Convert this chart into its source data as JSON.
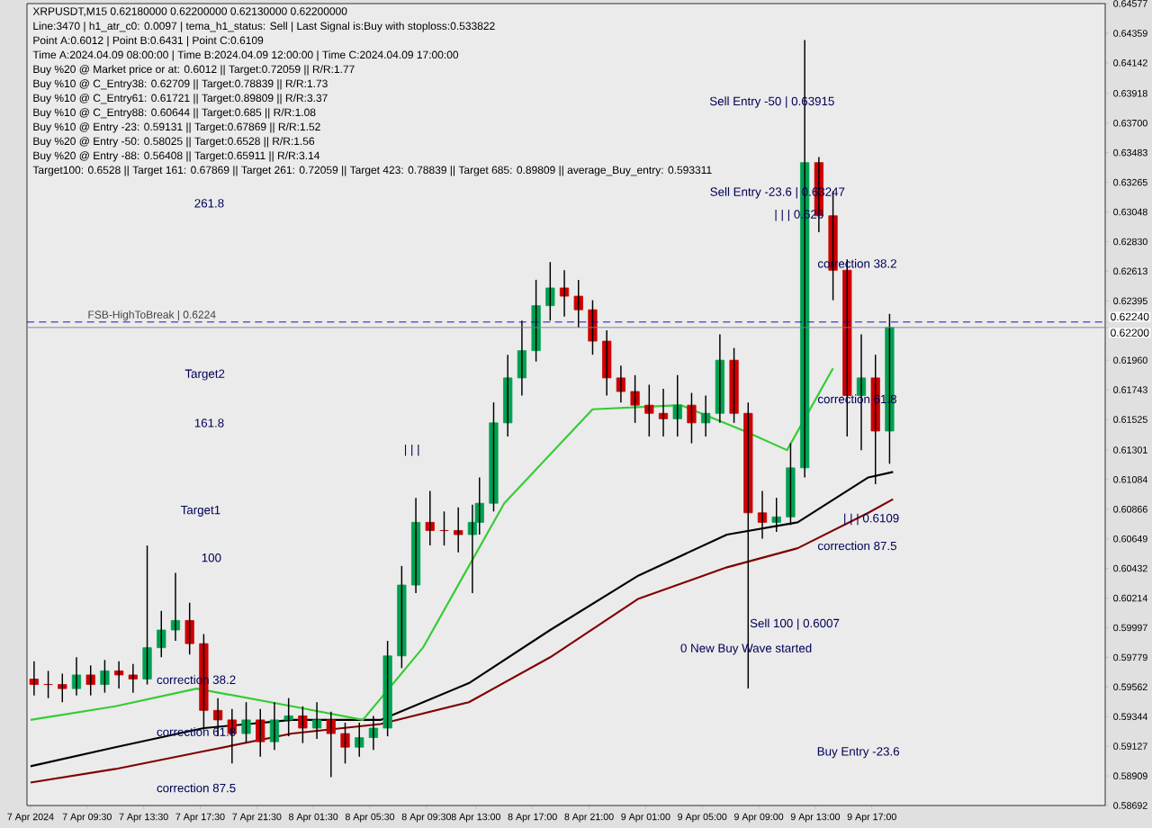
{
  "chart_data": {
    "type": "candlestick",
    "title": "XRPUSDT,M15  0.62180000 0.62200000 0.62130000 0.62200000",
    "x": [
      "2024-04-07T05:45",
      "2024-04-07T06:45",
      "2024-04-07T07:45",
      "2024-04-07T08:45",
      "2024-04-07T09:45",
      "2024-04-07T10:45",
      "2024-04-07T11:45",
      "2024-04-07T12:45",
      "2024-04-07T13:45",
      "2024-04-07T14:45",
      "2024-04-07T15:45",
      "2024-04-07T16:45",
      "2024-04-07T17:45",
      "2024-04-07T18:45",
      "2024-04-07T19:45",
      "2024-04-07T20:45",
      "2024-04-07T21:45",
      "2024-04-07T22:45",
      "2024-04-07T23:45",
      "2024-04-08T00:45",
      "2024-04-08T01:45",
      "2024-04-08T02:45",
      "2024-04-08T03:45",
      "2024-04-08T04:45",
      "2024-04-08T05:45",
      "2024-04-08T06:45",
      "2024-04-08T07:45",
      "2024-04-08T08:45",
      "2024-04-08T09:45",
      "2024-04-08T10:45",
      "2024-04-08T11:45",
      "2024-04-08T12:45",
      "2024-04-08T13:15",
      "2024-04-08T14:15",
      "2024-04-08T15:15",
      "2024-04-08T16:15",
      "2024-04-08T17:15",
      "2024-04-08T18:15",
      "2024-04-08T19:15",
      "2024-04-08T20:15",
      "2024-04-08T21:15",
      "2024-04-08T22:15",
      "2024-04-08T23:15",
      "2024-04-09T00:15",
      "2024-04-09T01:15",
      "2024-04-09T02:15",
      "2024-04-09T03:15",
      "2024-04-09T04:15",
      "2024-04-09T05:15",
      "2024-04-09T06:15",
      "2024-04-09T07:15",
      "2024-04-09T08:15",
      "2024-04-09T09:15",
      "2024-04-09T10:15",
      "2024-04-09T11:15",
      "2024-04-09T12:15",
      "2024-04-09T13:15",
      "2024-04-09T14:15",
      "2024-04-09T15:15",
      "2024-04-09T16:15",
      "2024-04-09T17:15",
      "2024-04-09T18:15"
    ],
    "ohlc": [
      [
        0.5962,
        0.5975,
        0.595,
        0.5958
      ],
      [
        0.5958,
        0.5968,
        0.5948,
        0.5958
      ],
      [
        0.5958,
        0.5966,
        0.5945,
        0.5955
      ],
      [
        0.5955,
        0.5978,
        0.595,
        0.5965
      ],
      [
        0.5965,
        0.5972,
        0.595,
        0.5958
      ],
      [
        0.5958,
        0.5976,
        0.5952,
        0.5968
      ],
      [
        0.5968,
        0.5975,
        0.5955,
        0.5965
      ],
      [
        0.5965,
        0.5973,
        0.5952,
        0.5962
      ],
      [
        0.5962,
        0.606,
        0.5958,
        0.5985
      ],
      [
        0.5985,
        0.6012,
        0.5978,
        0.5998
      ],
      [
        0.5998,
        0.604,
        0.599,
        0.6005
      ],
      [
        0.6005,
        0.6018,
        0.598,
        0.5988
      ],
      [
        0.5988,
        0.5995,
        0.5925,
        0.5939
      ],
      [
        0.5939,
        0.5948,
        0.592,
        0.5932
      ],
      [
        0.5932,
        0.594,
        0.59,
        0.5922
      ],
      [
        0.5922,
        0.5945,
        0.5915,
        0.5932
      ],
      [
        0.5932,
        0.594,
        0.5905,
        0.5916
      ],
      [
        0.5916,
        0.5945,
        0.591,
        0.5932
      ],
      [
        0.5932,
        0.5948,
        0.592,
        0.5935
      ],
      [
        0.5935,
        0.5942,
        0.5915,
        0.5926
      ],
      [
        0.5926,
        0.5945,
        0.5918,
        0.5932
      ],
      [
        0.5932,
        0.5938,
        0.589,
        0.5922
      ],
      [
        0.5922,
        0.593,
        0.59,
        0.5912
      ],
      [
        0.5912,
        0.593,
        0.5905,
        0.5919
      ],
      [
        0.5919,
        0.5935,
        0.591,
        0.5926
      ],
      [
        0.5926,
        0.599,
        0.592,
        0.5979
      ],
      [
        0.5979,
        0.6045,
        0.597,
        0.6031
      ],
      [
        0.6031,
        0.6095,
        0.6025,
        0.6077
      ],
      [
        0.6077,
        0.61,
        0.606,
        0.6071
      ],
      [
        0.6071,
        0.6085,
        0.606,
        0.6071
      ],
      [
        0.6071,
        0.6088,
        0.6055,
        0.6068
      ],
      [
        0.6068,
        0.609,
        0.6025,
        0.6077
      ],
      [
        0.6077,
        0.611,
        0.6068,
        0.6091
      ],
      [
        0.6091,
        0.6165,
        0.6085,
        0.615
      ],
      [
        0.615,
        0.62,
        0.614,
        0.6183
      ],
      [
        0.6183,
        0.6225,
        0.617,
        0.6203
      ],
      [
        0.6203,
        0.6255,
        0.6195,
        0.6236
      ],
      [
        0.6236,
        0.6268,
        0.6225,
        0.6249
      ],
      [
        0.6249,
        0.6262,
        0.6228,
        0.6243
      ],
      [
        0.6243,
        0.6255,
        0.622,
        0.6233
      ],
      [
        0.6233,
        0.624,
        0.62,
        0.621
      ],
      [
        0.621,
        0.6218,
        0.617,
        0.6183
      ],
      [
        0.6183,
        0.6192,
        0.6165,
        0.6173
      ],
      [
        0.6173,
        0.6185,
        0.615,
        0.6163
      ],
      [
        0.6163,
        0.6178,
        0.614,
        0.6157
      ],
      [
        0.6157,
        0.6175,
        0.614,
        0.6153
      ],
      [
        0.6153,
        0.6185,
        0.614,
        0.6163
      ],
      [
        0.6163,
        0.6172,
        0.6135,
        0.615
      ],
      [
        0.615,
        0.617,
        0.614,
        0.6157
      ],
      [
        0.6157,
        0.6215,
        0.615,
        0.6196
      ],
      [
        0.6196,
        0.6205,
        0.615,
        0.6157
      ],
      [
        0.6157,
        0.6165,
        0.5955,
        0.6084
      ],
      [
        0.6084,
        0.61,
        0.6065,
        0.6077
      ],
      [
        0.6077,
        0.6095,
        0.607,
        0.6081
      ],
      [
        0.6081,
        0.6135,
        0.6075,
        0.6117
      ],
      [
        0.6117,
        0.6431,
        0.611,
        0.6341
      ],
      [
        0.6341,
        0.6345,
        0.629,
        0.6302
      ],
      [
        0.6302,
        0.632,
        0.624,
        0.6262
      ],
      [
        0.6262,
        0.627,
        0.614,
        0.617
      ],
      [
        0.617,
        0.6215,
        0.613,
        0.6183
      ],
      [
        0.6183,
        0.62,
        0.6105,
        0.6144
      ],
      [
        0.6144,
        0.623,
        0.612,
        0.622
      ]
    ],
    "colors": [
      "#cc0000",
      "#cc0000",
      "#cc0000",
      "#00a050",
      "#cc0000",
      "#00a050",
      "#cc0000",
      "#cc0000",
      "#00a050",
      "#00a050",
      "#00a050",
      "#cc0000",
      "#cc0000",
      "#cc0000",
      "#cc0000",
      "#00a050",
      "#cc0000",
      "#00a050",
      "#00a050",
      "#cc0000",
      "#00a050",
      "#cc0000",
      "#cc0000",
      "#00a050",
      "#00a050",
      "#00a050",
      "#00a050",
      "#00a050",
      "#cc0000",
      "#cc0000",
      "#cc0000",
      "#00a050",
      "#00a050",
      "#00a050",
      "#00a050",
      "#00a050",
      "#00a050",
      "#00a050",
      "#cc0000",
      "#cc0000",
      "#cc0000",
      "#cc0000",
      "#cc0000",
      "#cc0000",
      "#cc0000",
      "#cc0000",
      "#00a050",
      "#cc0000",
      "#00a050",
      "#00a050",
      "#cc0000",
      "#cc0000",
      "#cc0000",
      "#00a050",
      "#00a050",
      "#00a050",
      "#cc0000",
      "#cc0000",
      "#cc0000",
      "#00a050",
      "#cc0000",
      "#00a050"
    ],
    "series": [
      {
        "type": "line",
        "color": "#000000",
        "x": [
          "2024-04-07T05:30",
          "2024-04-07T11:30",
          "2024-04-07T17:45",
          "2024-04-08T00:00",
          "2024-04-08T06:15",
          "2024-04-08T12:30",
          "2024-04-08T18:15",
          "2024-04-09T00:30",
          "2024-04-09T06:45",
          "2024-04-09T11:45",
          "2024-04-09T16:45",
          "2024-04-09T18:30"
        ],
        "values": [
          0.5898,
          0.5912,
          0.5926,
          0.5932,
          0.5932,
          0.5959,
          0.5998,
          0.6038,
          0.6068,
          0.6077,
          0.611,
          0.6114
        ]
      },
      {
        "type": "line",
        "color": "#800000",
        "x": [
          "2024-04-07T05:30",
          "2024-04-07T11:30",
          "2024-04-07T17:45",
          "2024-04-08T00:00",
          "2024-04-08T06:15",
          "2024-04-08T12:30",
          "2024-04-08T18:15",
          "2024-04-09T00:30",
          "2024-04-09T06:45",
          "2024-04-09T11:45",
          "2024-04-09T16:45",
          "2024-04-09T18:30"
        ],
        "values": [
          0.5886,
          0.5896,
          0.5909,
          0.5922,
          0.5929,
          0.5945,
          0.5978,
          0.6021,
          0.6044,
          0.6058,
          0.6084,
          0.6094
        ]
      },
      {
        "type": "line",
        "color": "#33cc33",
        "x": [
          "2024-04-07T05:30",
          "2024-04-07T11:30",
          "2024-04-07T17:15",
          "2024-04-08T00:00",
          "2024-04-08T05:00",
          "2024-04-08T09:15",
          "2024-04-08T15:00",
          "2024-04-08T21:15",
          "2024-04-09T03:30",
          "2024-04-09T08:00",
          "2024-04-09T11:00",
          "2024-04-09T14:15"
        ],
        "values": [
          0.5932,
          0.5942,
          0.5955,
          0.5942,
          0.5932,
          0.5985,
          0.6091,
          0.616,
          0.6163,
          0.6144,
          0.613,
          0.619
        ]
      }
    ],
    "xlim": [
      "2024-04-07T05:15",
      "2024-04-10T09:30"
    ],
    "ylim": [
      0.58692,
      0.64577
    ],
    "xticks": [
      {
        "value": "2024-04-07T05:30",
        "label": "7 Apr 2024"
      },
      {
        "value": "2024-04-07T09:30",
        "label": "7 Apr 09:30"
      },
      {
        "value": "2024-04-07T13:30",
        "label": "7 Apr 13:30"
      },
      {
        "value": "2024-04-07T17:30",
        "label": "7 Apr 17:30"
      },
      {
        "value": "2024-04-07T21:30",
        "label": "7 Apr 21:30"
      },
      {
        "value": "2024-04-08T01:30",
        "label": "8 Apr 01:30"
      },
      {
        "value": "2024-04-08T05:30",
        "label": "8 Apr 05:30"
      },
      {
        "value": "2024-04-08T09:30",
        "label": "8 Apr 09:30"
      },
      {
        "value": "2024-04-08T13:00",
        "label": "8 Apr 13:00"
      },
      {
        "value": "2024-04-08T17:00",
        "label": "8 Apr 17:00"
      },
      {
        "value": "2024-04-08T21:00",
        "label": "8 Apr 21:00"
      },
      {
        "value": "2024-04-09T01:00",
        "label": "9 Apr 01:00"
      },
      {
        "value": "2024-04-09T05:00",
        "label": "9 Apr 05:00"
      },
      {
        "value": "2024-04-09T09:00",
        "label": "9 Apr 09:00"
      },
      {
        "value": "2024-04-09T13:00",
        "label": "9 Apr 13:00"
      },
      {
        "value": "2024-04-09T17:00",
        "label": "9 Apr 17:00"
      }
    ],
    "yticks": [
      0.58692,
      0.58909,
      0.59127,
      0.59344,
      0.59562,
      0.59779,
      0.59997,
      0.60214,
      0.60432,
      0.60649,
      0.60866,
      0.61084,
      0.61301,
      0.61525,
      0.61743,
      {
        "value": 0.6196,
        "label": "0.61960"
      },
      {
        "value": 0.622,
        "label": "0.62200"
      },
      {
        "value": 0.6224,
        "label": "0.62240"
      },
      0.62395,
      0.62613,
      {
        "value": 0.6283,
        "label": "0.62830"
      },
      0.63048,
      0.63265,
      0.63483,
      {
        "value": 0.637,
        "label": "0.63700"
      },
      0.63918,
      0.64142,
      0.64359,
      0.64577
    ],
    "ref_lines": [
      {
        "axis": "y",
        "value": 0.6224,
        "label": "FSB-HighToBreak | 0.6224",
        "color": "#0000cc",
        "line_style": "dashed"
      },
      {
        "axis": "y",
        "value": 0.622,
        "color": "#808080",
        "line_style": "solid"
      }
    ],
    "annotations": [
      "Line:3470 | h1_atr_c0: 0.0097 | tema_h1_status: Sell | Last Signal is:Buy with stoploss:0.533822",
      "Point A:0.6012 | Point B:0.6431 | Point C:0.6109",
      "Time A:2024.04.09 08:00:00 | Time B:2024.04.09 12:00:00 | Time C:2024.04.09 17:00:00",
      "Buy %20 @ Market price or at: 0.6012 || Target:0.72059 || R/R:1.77",
      "Buy %10 @ C_Entry38: 0.62709 || Target:0.78839 || R/R:1.73",
      "Buy %10 @ C_Entry61: 0.61721 || Target:0.89809 || R/R:3.37",
      "Buy %10 @ C_Entry88: 0.60644 || Target:0.685 || R/R:1.08",
      "Buy %10 @ Entry -23: 0.59131 || Target:0.67869 || R/R:1.52",
      "Buy %20 @ Entry -50: 0.58025 || Target:0.6528 || R/R:1.56",
      "Buy %20 @ Entry -88: 0.56408 || Target:0.65911 || R/R:3.14",
      "Target100: 0.6528 || Target 161: 0.67869 || Target 261: 0.72059 || Target 423: 0.78839 || Target 685: 0.89809 || average_Buy_entry: 0.593311",
      "261.8",
      "Target2",
      "161.8",
      "Target1",
      "100",
      "correction 38.2",
      "correction 61.8",
      "correction 87.5",
      "| | |",
      "Sell Entry -50 | 0.63915",
      "Sell Entry -23.6 | 0.63247",
      "| | | 0.626",
      "correction 38.2",
      "correction 61.8",
      "| | | 0.6109",
      "correction 87.5",
      "Sell 100 | 0.6007",
      "0 New Buy Wave started",
      "Buy Entry -23.6"
    ]
  }
}
